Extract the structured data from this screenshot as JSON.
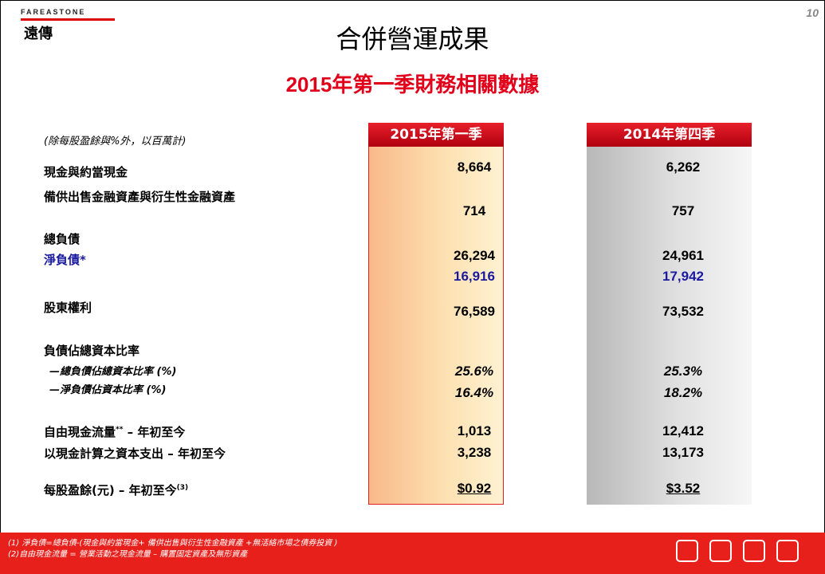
{
  "header": {
    "logo_en": "FAREASTONE",
    "logo_zh": "遠傳",
    "page_number": "10",
    "title": "合併營運成果",
    "subtitle_year": "2015",
    "subtitle_rest": "年第一季財務相關數據"
  },
  "table": {
    "note": "(除每股盈餘與%外，以百萬計)",
    "columns": [
      "2015年第一季",
      "2014年第四季"
    ],
    "rows": [
      {
        "label": "現金與約當現金",
        "values": [
          "8,664",
          "6,262"
        ]
      },
      {
        "label": "備供出售金融資產與衍生性金融資產",
        "values": [
          "714",
          "757"
        ]
      },
      {
        "label": "總負債",
        "values": [
          "26,294",
          "24,961"
        ]
      },
      {
        "label": "淨負債*",
        "values": [
          "16,916",
          "17,942"
        ]
      },
      {
        "label": "股東權利",
        "values": [
          "76,589",
          "73,532"
        ]
      },
      {
        "label": "負債佔總資本比率",
        "values": []
      },
      {
        "label": "—總負債佔總資本比率 (%)",
        "values": [
          "25.6%",
          "25.3%"
        ]
      },
      {
        "label": "—淨負債佔資本比率 (%)",
        "values": [
          "16.4%",
          "18.2%"
        ]
      },
      {
        "label": "自由現金流量",
        "sup": "**",
        "suffix": " – 年初至今",
        "values": [
          "1,013",
          "12,412"
        ]
      },
      {
        "label": "以現金計算之資本支出 – 年初至今",
        "values": [
          "3,238",
          "13,173"
        ]
      },
      {
        "label": "每股盈餘(元) – 年初至今",
        "sup": "(3)",
        "values": [
          "$0.92",
          "$3.52"
        ]
      }
    ]
  },
  "footer": {
    "notes": [
      "(1) 淨負債=總負債-(現金與約當現金+ 備供出售與衍生性金融資產 +無活絡市場之債券投資 )",
      "(2)自由現金流量 = 營業活動之現金流量 – 購置固定資產及無形資產"
    ]
  }
}
